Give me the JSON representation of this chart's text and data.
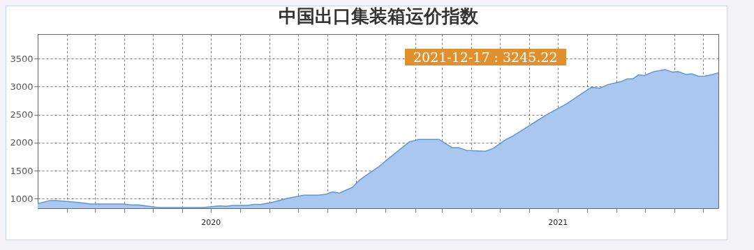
{
  "chart_data": {
    "type": "area",
    "title": "中国出口集装箱运价指数",
    "annotations": [
      "2021-12-17 : 3245.22"
    ],
    "x": [
      "2020-01-01",
      "2020-01-14",
      "2020-01-20",
      "2020-02-01",
      "2020-02-13",
      "2020-02-26",
      "2020-04-01",
      "2020-04-08",
      "2020-04-16",
      "2020-05-07",
      "2020-06-23",
      "2020-07-11",
      "2020-07-17",
      "2020-07-24",
      "2020-08-08",
      "2020-08-15",
      "2020-08-23",
      "2020-09-03",
      "2020-09-19",
      "2020-10-07",
      "2020-10-22",
      "2020-10-30",
      "2020-11-06",
      "2020-11-13",
      "2020-11-27",
      "2020-12-05",
      "2020-12-10",
      "2020-12-24",
      "2021-01-03",
      "2021-01-26",
      "2021-02-05",
      "2021-02-26",
      "2021-03-12",
      "2021-03-19",
      "2021-03-27",
      "2021-04-16",
      "2021-04-24",
      "2021-05-08",
      "2021-05-15",
      "2021-06-03",
      "2021-06-21",
      "2021-07-10",
      "2021-08-05",
      "2021-08-14",
      "2021-08-23",
      "2021-09-04",
      "2021-09-12",
      "2021-09-18",
      "2021-09-24",
      "2021-09-30",
      "2021-10-10",
      "2021-10-22",
      "2021-10-30",
      "2021-11-05",
      "2021-11-13",
      "2021-11-19",
      "2021-11-26",
      "2021-12-03",
      "2021-12-10",
      "2021-12-17"
    ],
    "series": [
      {
        "color": "#a9c7ef",
        "values": [
          910,
          968,
          968,
          951,
          933,
          905,
          905,
          888,
          888,
          842,
          842,
          874,
          863,
          880,
          880,
          897,
          897,
          933,
          1005,
          1063,
          1063,
          1077,
          1122,
          1099,
          1203,
          1338,
          1400,
          1560,
          1701,
          2014,
          2058,
          2058,
          1909,
          1909,
          1862,
          1845,
          1897,
          2062,
          2119,
          2323,
          2515,
          2689,
          2984,
          2971,
          3036,
          3080,
          3136,
          3136,
          3209,
          3196,
          3266,
          3301,
          3257,
          3266,
          3214,
          3227,
          3184,
          3188,
          3210,
          3245.22
        ]
      }
    ],
    "xlim": [
      "2020-01-01",
      "2021-12-17"
    ],
    "ylim": [
      830,
      3935
    ],
    "yticks": [
      1000,
      1500,
      2000,
      2500,
      3000,
      3500
    ],
    "xticks": [
      {
        "value": "2020-02-01",
        "label": null
      },
      {
        "value": "2020-03-01",
        "label": null
      },
      {
        "value": "2020-04-01",
        "label": null
      },
      {
        "value": "2020-05-01",
        "label": null
      },
      {
        "value": "2020-06-01",
        "label": null
      },
      {
        "value": "2020-07-01",
        "label": "2020"
      },
      {
        "value": "2020-08-01",
        "label": null
      },
      {
        "value": "2020-09-01",
        "label": null
      },
      {
        "value": "2020-10-01",
        "label": null
      },
      {
        "value": "2020-11-01",
        "label": null
      },
      {
        "value": "2020-12-01",
        "label": null
      },
      {
        "value": "2021-01-01",
        "label": null
      },
      {
        "value": "2021-02-01",
        "label": null
      },
      {
        "value": "2021-03-01",
        "label": null
      },
      {
        "value": "2021-04-01",
        "label": null
      },
      {
        "value": "2021-05-01",
        "label": null
      },
      {
        "value": "2021-06-01",
        "label": null
      },
      {
        "value": "2021-07-01",
        "label": "2021"
      },
      {
        "value": "2021-08-01",
        "label": null
      },
      {
        "value": "2021-09-01",
        "label": null
      },
      {
        "value": "2021-10-01",
        "label": null
      },
      {
        "value": "2021-11-01",
        "label": null
      },
      {
        "value": "2021-12-01",
        "label": null
      }
    ],
    "grid": true
  }
}
